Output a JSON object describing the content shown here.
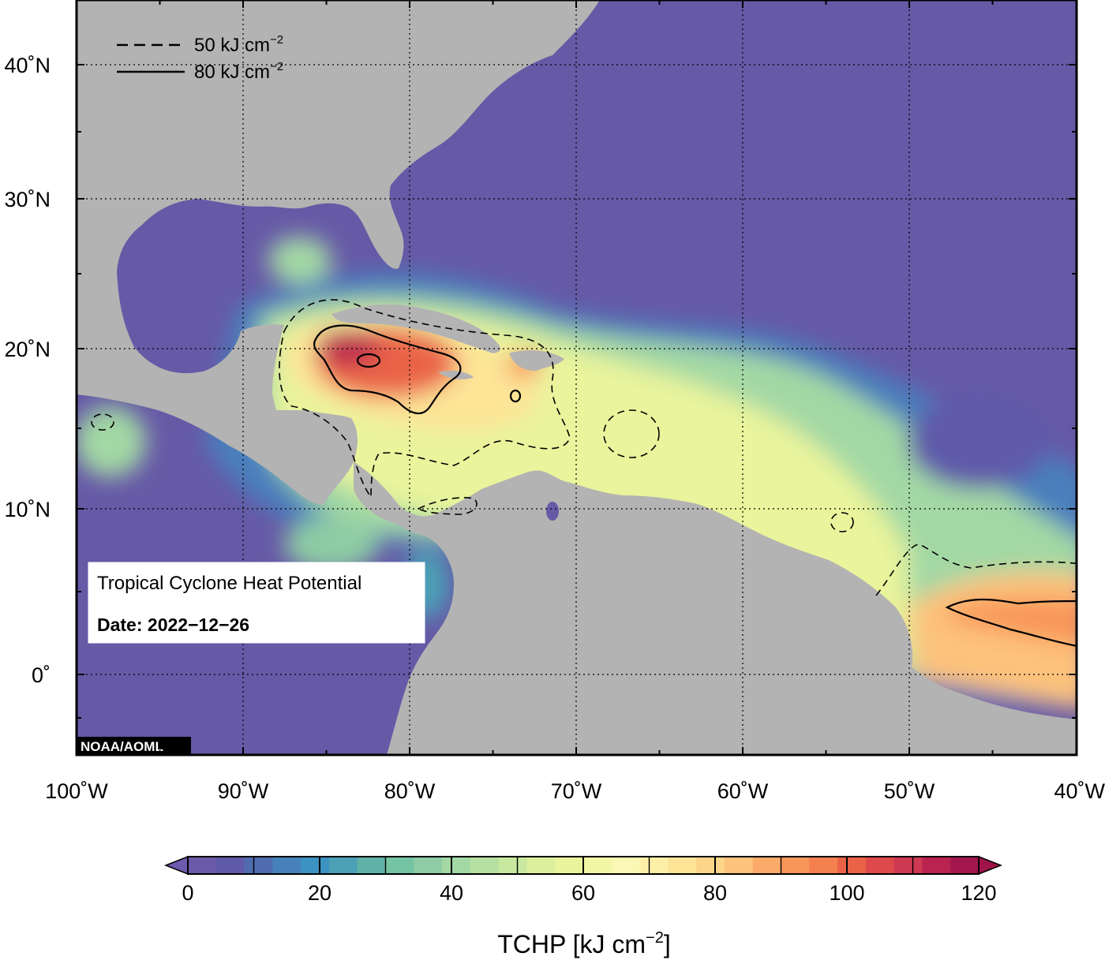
{
  "map": {
    "lon_ticks": [
      "100˚W",
      "90˚W",
      "80˚W",
      "70˚W",
      "60˚W",
      "50˚W",
      "40˚W"
    ],
    "lat_ticks": [
      "40˚N",
      "30˚N",
      "20˚N",
      "10˚N",
      "0˚"
    ],
    "credit": "NOAA/AOML"
  },
  "legend": {
    "entries": [
      {
        "style": "dashed",
        "label": "50 kJ cm",
        "exp": "−2"
      },
      {
        "style": "solid",
        "label": "80 kJ cm",
        "exp": "−2"
      }
    ]
  },
  "info_box": {
    "title": "Tropical Cyclone Heat Potential",
    "date": "Date: 2022−12−26"
  },
  "colorbar": {
    "tick_labels": [
      "0",
      "20",
      "40",
      "60",
      "80",
      "100",
      "120"
    ],
    "label_main": "TCHP [kJ cm",
    "label_exp": "−2",
    "label_close": "]",
    "colors": [
      "#6a59a8",
      "#5f5aa9",
      "#4f6cb0",
      "#4681bb",
      "#3c92c0",
      "#4ba0b6",
      "#5fb3a6",
      "#74c3a3",
      "#8dcca4",
      "#a3d8a4",
      "#b6e0a2",
      "#c8e89f",
      "#dbef9d",
      "#e9f49c",
      "#f2f7a5",
      "#faf8b4",
      "#fdf0a6",
      "#fde497",
      "#fdd58a",
      "#fdc27b",
      "#fcaa69",
      "#f89659",
      "#f47f4f",
      "#ea6348",
      "#de4a4c",
      "#cd3853",
      "#b8234f",
      "#a3174d"
    ],
    "under_color": "#6e5bb0",
    "over_color": "#9e1449"
  }
}
